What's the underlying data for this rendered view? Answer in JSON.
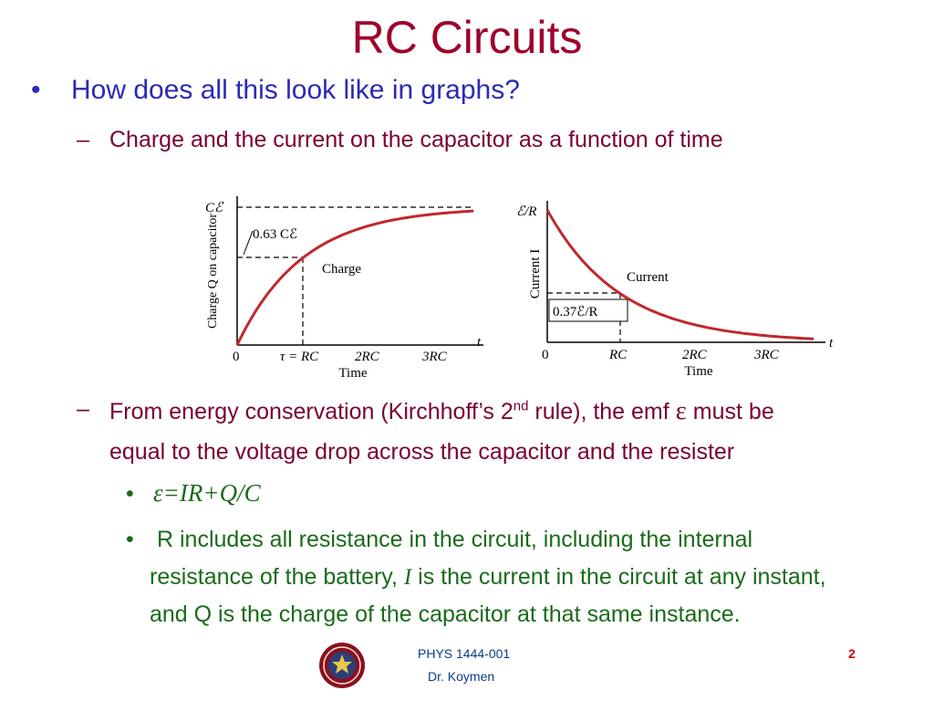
{
  "slide": {
    "title": "RC Circuits",
    "bullet1": "How does all this look like in graphs?",
    "sub1": "Charge and the current on the capacitor as a function of time",
    "sub2_a": "From energy conservation (Kirchhoff’s 2",
    "sub2_sup": "nd",
    "sub2_b": " rule), the emf ",
    "sub2_eps": "ε",
    "sub2_c": " must be",
    "sub2_line2": "equal to the voltage drop across the capacitor and the resister",
    "equation": "ε=IR+Q/C",
    "bullet_r_line1": "R includes all resistance in the circuit, including the internal",
    "bullet_r_line2a": "resistance of the battery, ",
    "bullet_r_I": "I",
    "bullet_r_line2b": " is the current in the circuit at any instant,",
    "bullet_r_line3": "and Q is the charge of the capacitor at that same instance.",
    "bullet_dot": "•",
    "dash": "–"
  },
  "chart_data": [
    {
      "type": "line",
      "series": [
        {
          "name": "Charge",
          "function": "Q = Cℰ(1 - e^(-t/RC))"
        }
      ],
      "xlabel": "Time",
      "ylabel": "Charge Q on capacitor",
      "x_ticks": [
        "0",
        "τ = RC",
        "2RC",
        "3RC"
      ],
      "y_ticks": [
        "Cℰ",
        "0.63 Cℰ"
      ],
      "axis_end_label": "t",
      "annotation": "Charge",
      "xlim": [
        0,
        3.6
      ],
      "ylim": [
        0,
        1
      ],
      "marked_point": {
        "x": 1,
        "y": 0.63
      }
    },
    {
      "type": "line",
      "series": [
        {
          "name": "Current",
          "function": "I = (ℰ/R) e^(-t/RC)"
        }
      ],
      "xlabel": "Time",
      "ylabel": "Current I",
      "x_ticks": [
        "0",
        "RC",
        "2RC",
        "3RC"
      ],
      "y_ticks": [
        "ℰ/R",
        "0.37ℰ/R"
      ],
      "axis_end_label": "t",
      "annotation": "Current",
      "xlim": [
        0,
        3.6
      ],
      "ylim": [
        0,
        1
      ],
      "marked_point": {
        "x": 1,
        "y": 0.37
      }
    }
  ],
  "footer": {
    "course": "PHYS 1444-001",
    "instructor": "Dr. Koymen",
    "page": "2",
    "logo_icon": "university-seal-icon"
  },
  "colors": {
    "title": "#a0002a",
    "bullet": "#2a2ab6",
    "sub": "#7a0033",
    "green": "#1a6b1a",
    "curve": "#c0282d",
    "page_number": "#cc0000"
  }
}
